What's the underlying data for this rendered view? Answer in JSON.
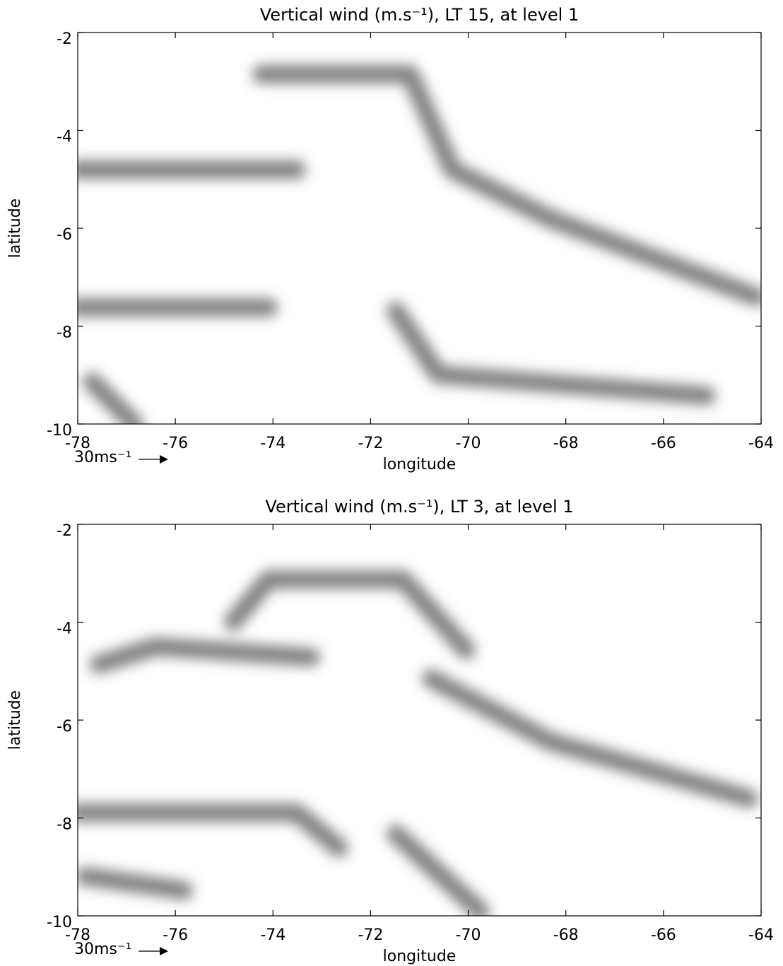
{
  "chart_data": [
    {
      "type": "quiver",
      "title": "Vertical wind (m.s⁻¹), LT 15, at level 1",
      "x_label": "longitude",
      "y_label": "latitude",
      "xlim": [
        -78,
        -64
      ],
      "ylim": [
        -10,
        -2
      ],
      "xticks": [
        -78,
        -76,
        -74,
        -72,
        -70,
        -68,
        -66,
        -64
      ],
      "yticks": [
        -10,
        -8,
        -6,
        -4,
        -2
      ],
      "key_label": "30ms⁻¹"
    },
    {
      "type": "quiver",
      "title": "Vertical wind (m.s⁻¹), LT 3, at level 1",
      "x_label": "longitude",
      "y_label": "latitude",
      "xlim": [
        -78,
        -64
      ],
      "ylim": [
        -10,
        -2
      ],
      "xticks": [
        -78,
        -76,
        -74,
        -72,
        -70,
        -68,
        -66,
        -64
      ],
      "yticks": [
        -10,
        -8,
        -6,
        -4,
        -2
      ],
      "key_label": "30ms⁻¹"
    }
  ]
}
